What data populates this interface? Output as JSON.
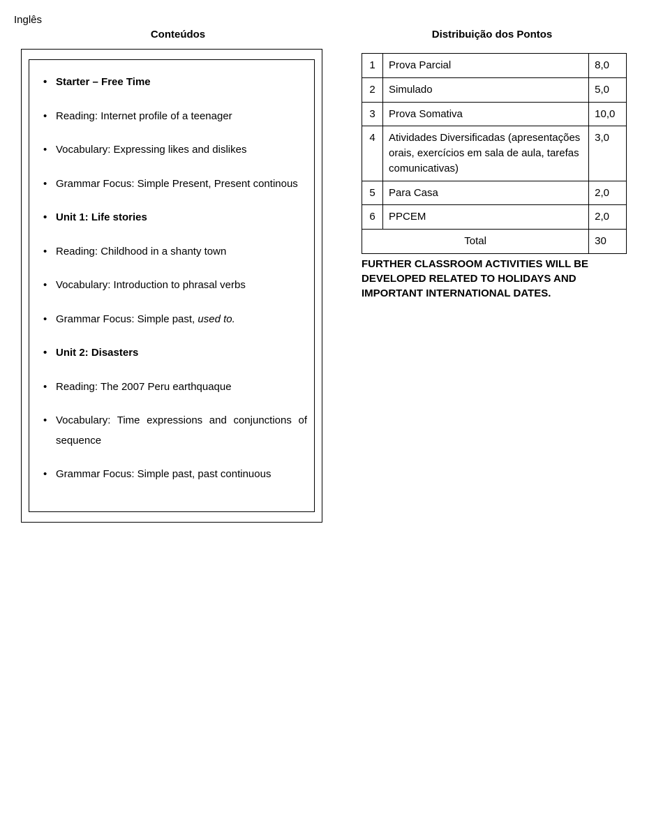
{
  "subject": "Inglês",
  "header_left": "Conteúdos",
  "header_right": "Distribuição dos Pontos",
  "content_items": [
    {
      "text": "Starter – Free Time",
      "bold": true
    },
    {
      "text": "Reading: Internet profile of a teenager"
    },
    {
      "text": "Vocabulary: Expressing likes and dislikes"
    },
    {
      "text": "Grammar Focus: Simple Present, Present continous"
    },
    {
      "text": "Unit 1: Life stories",
      "bold": true
    },
    {
      "text": "Reading: Childhood in a shanty town"
    },
    {
      "text": "Vocabulary: Introduction to phrasal verbs"
    },
    {
      "text_html": "Grammar Focus: Simple past, <span class=\"italic\">used to.</span>"
    },
    {
      "text": "Unit 2: Disasters",
      "bold": true
    },
    {
      "text": "Reading: The 2007 Peru earthquaque"
    },
    {
      "text": "Vocabulary: Time expressions and conjunctions of sequence"
    },
    {
      "text": "Grammar Focus: Simple past, past continuous"
    }
  ],
  "points_rows": [
    {
      "n": "1",
      "label": "Prova Parcial",
      "value": "8,0"
    },
    {
      "n": "2",
      "label": "Simulado",
      "value": "5,0"
    },
    {
      "n": "3",
      "label": "Prova Somativa",
      "value": "10,0"
    },
    {
      "n": "4",
      "label": "Atividades Diversificadas (apresentações orais, exercícios em sala de aula, tarefas comunicativas)",
      "value": "3,0"
    },
    {
      "n": "5",
      "label": "Para Casa",
      "value": "2,0"
    },
    {
      "n": "6",
      "label": "PPCEM",
      "value": "2,0"
    }
  ],
  "total_label": "Total",
  "total_value": "30",
  "footer_note": "FURTHER CLASSROOM ACTIVITIES WILL BE DEVELOPED RELATED TO HOLIDAYS AND IMPORTANT INTERNATIONAL DATES."
}
